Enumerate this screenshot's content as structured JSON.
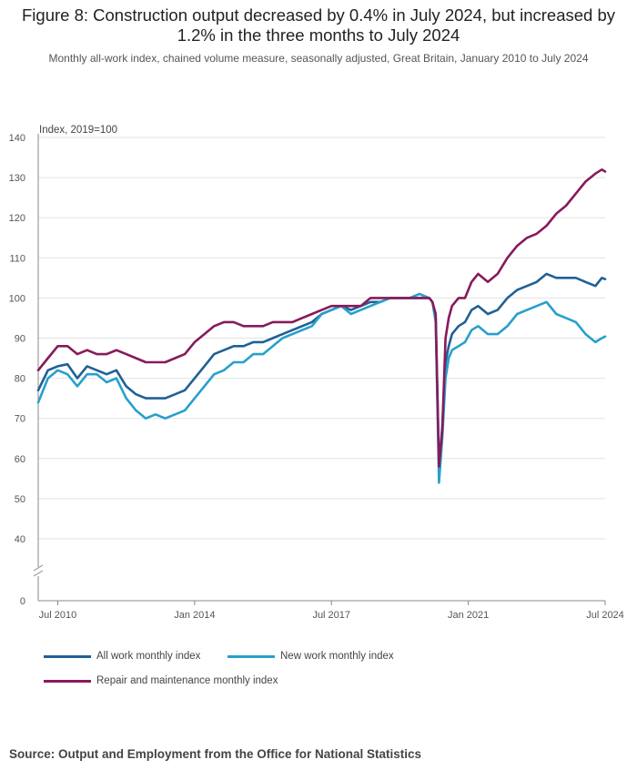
{
  "header": {
    "title": "Figure 8: Construction output decreased by 0.4% in July 2024, but increased by 1.2% in the three months to July 2024",
    "subtitle": "Monthly all-work index, chained volume measure, seasonally adjusted, Great Britain, January 2010 to July 2024"
  },
  "footer": {
    "source": "Source: Output and Employment from the Office for National Statistics"
  },
  "chart_data": {
    "type": "line",
    "ylabel": "Index, 2019=100",
    "ylim": [
      0,
      140
    ],
    "yticks": [
      0,
      40,
      50,
      60,
      70,
      80,
      90,
      100,
      110,
      120,
      130,
      140
    ],
    "axis_break": [
      0,
      40
    ],
    "x_start": "2010-01",
    "x_end": "2024-07",
    "xticks": [
      {
        "date": "2010-07",
        "label": "Jul 2010"
      },
      {
        "date": "2014-01",
        "label": "Jan 2014"
      },
      {
        "date": "2017-07",
        "label": "Jul 2017"
      },
      {
        "date": "2021-01",
        "label": "Jan 2021"
      },
      {
        "date": "2024-07",
        "label": "Jul 2024"
      }
    ],
    "grid": true,
    "legend_position": "bottom",
    "series": [
      {
        "name": "All work monthly index",
        "color": "#206095",
        "points": [
          [
            "2010-01",
            77
          ],
          [
            "2010-04",
            82
          ],
          [
            "2010-07",
            83
          ],
          [
            "2010-10",
            83.5
          ],
          [
            "2011-01",
            80
          ],
          [
            "2011-04",
            83
          ],
          [
            "2011-07",
            82
          ],
          [
            "2011-10",
            81
          ],
          [
            "2012-01",
            82
          ],
          [
            "2012-04",
            78
          ],
          [
            "2012-07",
            76
          ],
          [
            "2012-10",
            75
          ],
          [
            "2013-01",
            75
          ],
          [
            "2013-04",
            75
          ],
          [
            "2013-07",
            76
          ],
          [
            "2013-10",
            77
          ],
          [
            "2014-01",
            80
          ],
          [
            "2014-04",
            83
          ],
          [
            "2014-07",
            86
          ],
          [
            "2014-10",
            87
          ],
          [
            "2015-01",
            88
          ],
          [
            "2015-04",
            88
          ],
          [
            "2015-07",
            89
          ],
          [
            "2015-10",
            89
          ],
          [
            "2016-01",
            90
          ],
          [
            "2016-04",
            91
          ],
          [
            "2016-07",
            92
          ],
          [
            "2016-10",
            93
          ],
          [
            "2017-01",
            94
          ],
          [
            "2017-04",
            96
          ],
          [
            "2017-07",
            97
          ],
          [
            "2017-10",
            98
          ],
          [
            "2018-01",
            97
          ],
          [
            "2018-04",
            98
          ],
          [
            "2018-07",
            99
          ],
          [
            "2018-10",
            99
          ],
          [
            "2019-01",
            100
          ],
          [
            "2019-04",
            100
          ],
          [
            "2019-07",
            100
          ],
          [
            "2019-10",
            100
          ],
          [
            "2020-01",
            100
          ],
          [
            "2020-02",
            99
          ],
          [
            "2020-03",
            95
          ],
          [
            "2020-04",
            58
          ],
          [
            "2020-05",
            68
          ],
          [
            "2020-06",
            84
          ],
          [
            "2020-07",
            88
          ],
          [
            "2020-08",
            91
          ],
          [
            "2020-10",
            93
          ],
          [
            "2020-12",
            94
          ],
          [
            "2021-02",
            97
          ],
          [
            "2021-04",
            98
          ],
          [
            "2021-07",
            96
          ],
          [
            "2021-10",
            97
          ],
          [
            "2022-01",
            100
          ],
          [
            "2022-04",
            102
          ],
          [
            "2022-07",
            103
          ],
          [
            "2022-10",
            104
          ],
          [
            "2023-01",
            106
          ],
          [
            "2023-04",
            105
          ],
          [
            "2023-07",
            105
          ],
          [
            "2023-10",
            105
          ],
          [
            "2024-01",
            104
          ],
          [
            "2024-04",
            103
          ],
          [
            "2024-06",
            105
          ],
          [
            "2024-07",
            104.7
          ]
        ]
      },
      {
        "name": "New work monthly index",
        "color": "#27a0cc",
        "points": [
          [
            "2010-01",
            74
          ],
          [
            "2010-04",
            80
          ],
          [
            "2010-07",
            82
          ],
          [
            "2010-10",
            81
          ],
          [
            "2011-01",
            78
          ],
          [
            "2011-04",
            81
          ],
          [
            "2011-07",
            81
          ],
          [
            "2011-10",
            79
          ],
          [
            "2012-01",
            80
          ],
          [
            "2012-04",
            75
          ],
          [
            "2012-07",
            72
          ],
          [
            "2012-10",
            70
          ],
          [
            "2013-01",
            71
          ],
          [
            "2013-04",
            70
          ],
          [
            "2013-07",
            71
          ],
          [
            "2013-10",
            72
          ],
          [
            "2014-01",
            75
          ],
          [
            "2014-04",
            78
          ],
          [
            "2014-07",
            81
          ],
          [
            "2014-10",
            82
          ],
          [
            "2015-01",
            84
          ],
          [
            "2015-04",
            84
          ],
          [
            "2015-07",
            86
          ],
          [
            "2015-10",
            86
          ],
          [
            "2016-01",
            88
          ],
          [
            "2016-04",
            90
          ],
          [
            "2016-07",
            91
          ],
          [
            "2016-10",
            92
          ],
          [
            "2017-01",
            93
          ],
          [
            "2017-04",
            96
          ],
          [
            "2017-07",
            97
          ],
          [
            "2017-10",
            98
          ],
          [
            "2018-01",
            96
          ],
          [
            "2018-04",
            97
          ],
          [
            "2018-07",
            98
          ],
          [
            "2018-10",
            99
          ],
          [
            "2019-01",
            100
          ],
          [
            "2019-04",
            100
          ],
          [
            "2019-07",
            100
          ],
          [
            "2019-10",
            101
          ],
          [
            "2020-01",
            100
          ],
          [
            "2020-02",
            99
          ],
          [
            "2020-03",
            94
          ],
          [
            "2020-04",
            54
          ],
          [
            "2020-05",
            65
          ],
          [
            "2020-06",
            80
          ],
          [
            "2020-07",
            85
          ],
          [
            "2020-08",
            87
          ],
          [
            "2020-10",
            88
          ],
          [
            "2020-12",
            89
          ],
          [
            "2021-02",
            92
          ],
          [
            "2021-04",
            93
          ],
          [
            "2021-07",
            91
          ],
          [
            "2021-10",
            91
          ],
          [
            "2022-01",
            93
          ],
          [
            "2022-04",
            96
          ],
          [
            "2022-07",
            97
          ],
          [
            "2022-10",
            98
          ],
          [
            "2023-01",
            99
          ],
          [
            "2023-04",
            96
          ],
          [
            "2023-07",
            95
          ],
          [
            "2023-10",
            94
          ],
          [
            "2024-01",
            91
          ],
          [
            "2024-04",
            89
          ],
          [
            "2024-06",
            90
          ],
          [
            "2024-07",
            90.4
          ]
        ]
      },
      {
        "name": "Repair and maintenance monthly index",
        "color": "#871a5b",
        "points": [
          [
            "2010-01",
            82
          ],
          [
            "2010-04",
            85
          ],
          [
            "2010-07",
            88
          ],
          [
            "2010-10",
            88
          ],
          [
            "2011-01",
            86
          ],
          [
            "2011-04",
            87
          ],
          [
            "2011-07",
            86
          ],
          [
            "2011-10",
            86
          ],
          [
            "2012-01",
            87
          ],
          [
            "2012-04",
            86
          ],
          [
            "2012-07",
            85
          ],
          [
            "2012-10",
            84
          ],
          [
            "2013-01",
            84
          ],
          [
            "2013-04",
            84
          ],
          [
            "2013-07",
            85
          ],
          [
            "2013-10",
            86
          ],
          [
            "2014-01",
            89
          ],
          [
            "2014-04",
            91
          ],
          [
            "2014-07",
            93
          ],
          [
            "2014-10",
            94
          ],
          [
            "2015-01",
            94
          ],
          [
            "2015-04",
            93
          ],
          [
            "2015-07",
            93
          ],
          [
            "2015-10",
            93
          ],
          [
            "2016-01",
            94
          ],
          [
            "2016-04",
            94
          ],
          [
            "2016-07",
            94
          ],
          [
            "2016-10",
            95
          ],
          [
            "2017-01",
            96
          ],
          [
            "2017-04",
            97
          ],
          [
            "2017-07",
            98
          ],
          [
            "2017-10",
            98
          ],
          [
            "2018-01",
            98
          ],
          [
            "2018-04",
            98
          ],
          [
            "2018-07",
            100
          ],
          [
            "2018-10",
            100
          ],
          [
            "2019-01",
            100
          ],
          [
            "2019-04",
            100
          ],
          [
            "2019-07",
            100
          ],
          [
            "2019-10",
            100
          ],
          [
            "2020-01",
            100
          ],
          [
            "2020-02",
            99
          ],
          [
            "2020-03",
            96
          ],
          [
            "2020-04",
            58
          ],
          [
            "2020-05",
            67
          ],
          [
            "2020-06",
            90
          ],
          [
            "2020-07",
            95
          ],
          [
            "2020-08",
            98
          ],
          [
            "2020-10",
            100
          ],
          [
            "2020-12",
            100
          ],
          [
            "2021-02",
            104
          ],
          [
            "2021-04",
            106
          ],
          [
            "2021-07",
            104
          ],
          [
            "2021-10",
            106
          ],
          [
            "2022-01",
            110
          ],
          [
            "2022-04",
            113
          ],
          [
            "2022-07",
            115
          ],
          [
            "2022-10",
            116
          ],
          [
            "2023-01",
            118
          ],
          [
            "2023-04",
            121
          ],
          [
            "2023-07",
            123
          ],
          [
            "2023-10",
            126
          ],
          [
            "2024-01",
            129
          ],
          [
            "2024-04",
            131
          ],
          [
            "2024-06",
            132
          ],
          [
            "2024-07",
            131.5
          ]
        ]
      }
    ]
  }
}
